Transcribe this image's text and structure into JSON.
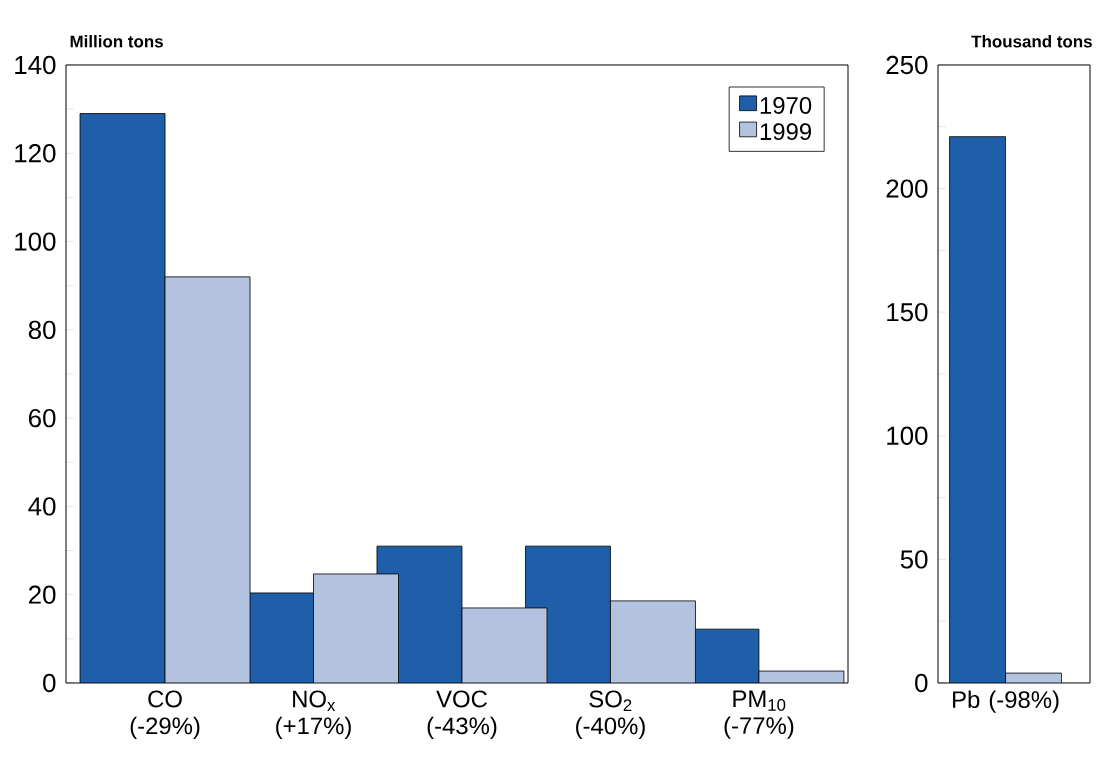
{
  "chart_data": [
    {
      "type": "bar",
      "ylabel": "Million tons",
      "categories": [
        "CO (-29%)",
        "NO$_{x}$ (+17%)",
        "VOC (-43%)",
        "SO$_{2}$ (-40%)",
        "PM$_{10}$ (-77%)"
      ],
      "series": [
        {
          "name": "1970",
          "color": "#1f5ea8",
          "values": [
            129,
            20.4,
            31,
            31,
            12.2
          ]
        },
        {
          "name": "1999",
          "color": "#b3c3df",
          "values": [
            92,
            24.7,
            17,
            18.6,
            2.7
          ]
        }
      ],
      "ylim": [
        0,
        140
      ],
      "yticks": [
        0,
        {
          "value": 10,
          "label": null
        },
        20,
        {
          "value": 30,
          "label": null
        },
        40,
        {
          "value": 50,
          "label": null
        },
        60,
        {
          "value": 70,
          "label": null
        },
        80,
        {
          "value": 90,
          "label": null
        },
        100,
        {
          "value": 110,
          "label": null
        },
        120,
        {
          "value": 130,
          "label": null
        },
        140
      ],
      "legend": "top right"
    },
    {
      "type": "bar",
      "ylabel": "Thousand tons",
      "categories": [
        "Pb (-98%)"
      ],
      "series": [
        {
          "color": "#1f5ea8",
          "values": [
            221
          ]
        },
        {
          "color": "#b3c3df",
          "values": [
            4
          ]
        }
      ],
      "ylim": [
        0,
        250
      ],
      "yticks": [
        0,
        {
          "value": 25,
          "label": null
        },
        50,
        {
          "value": 75,
          "label": null
        },
        100,
        {
          "value": 125,
          "label": null
        },
        150,
        {
          "value": 175,
          "label": null
        },
        200,
        {
          "value": 225,
          "label": null
        },
        250
      ]
    }
  ]
}
